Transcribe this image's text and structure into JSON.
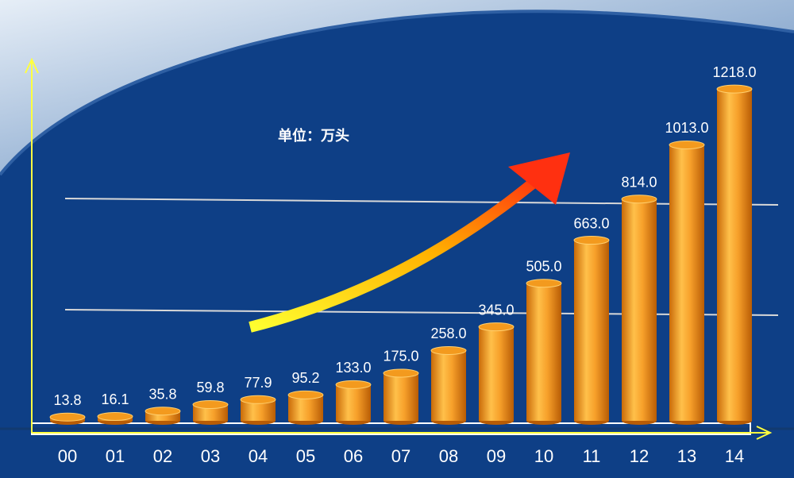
{
  "chart_data": {
    "type": "bar",
    "title": "单位：万头",
    "categories": [
      "00",
      "01",
      "02",
      "03",
      "04",
      "05",
      "06",
      "07",
      "08",
      "09",
      "10",
      "11",
      "12",
      "13",
      "14"
    ],
    "values": [
      13.8,
      16.1,
      35.8,
      59.8,
      77.9,
      95.2,
      133,
      175,
      258,
      345,
      505,
      663,
      814,
      1013,
      1218
    ],
    "value_labels": [
      "13.8",
      "16.1",
      "35.8",
      "59.8",
      "77.9",
      "95.2",
      "133.0",
      "175.0",
      "258.0",
      "345.0",
      "505.0",
      "663.0",
      "814.0",
      "1013.0",
      "1218.0"
    ],
    "color": "#f39a1e",
    "ylim": [
      0,
      1300
    ]
  }
}
